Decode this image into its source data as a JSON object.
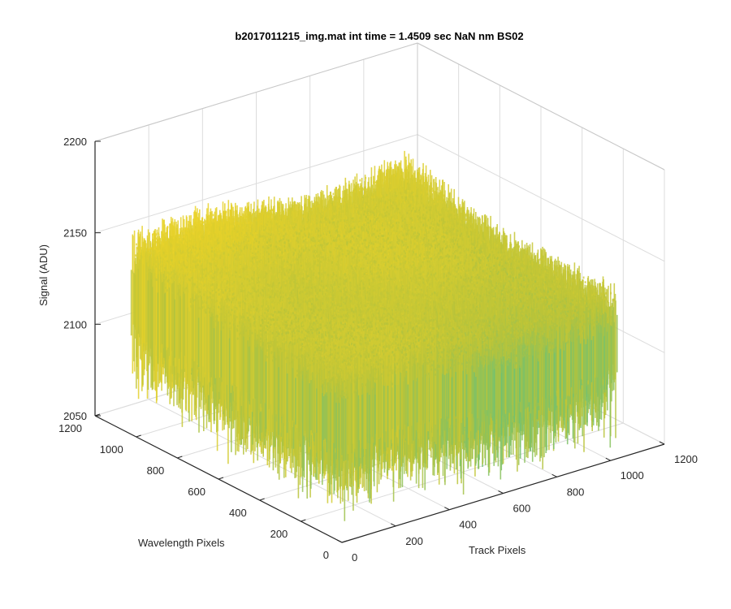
{
  "chart_data": {
    "type": "surface",
    "title": "b2017011215_img.mat int time = 1.4509 sec  NaN nm BS02",
    "xlabel": "Track Pixels",
    "ylabel": "Wavelength Pixels",
    "zlabel": "Signal (ADU)",
    "xlim": [
      0,
      1200
    ],
    "ylim": [
      0,
      1200
    ],
    "zlim": [
      2050,
      2200
    ],
    "xticks": [
      "0",
      "200",
      "400",
      "600",
      "800",
      "1000",
      "1200"
    ],
    "yticks": [
      "0",
      "200",
      "400",
      "600",
      "800",
      "1000",
      "1200"
    ],
    "zticks": [
      "2050",
      "2100",
      "2150",
      "2200"
    ],
    "grid": true,
    "colormap": "parula",
    "surface": {
      "track_pixel_range": [
        0,
        1024
      ],
      "wavelength_pixel_range": [
        0,
        1024
      ],
      "signal_mean_approx": 2120,
      "signal_min_approx": 2060,
      "signal_max_approx": 2170
    },
    "colors": {
      "low": "#0f5bd6",
      "mid_low": "#1fa6c7",
      "mid": "#4cc08d",
      "mid_high": "#b8c33a",
      "high": "#f6d625"
    }
  }
}
